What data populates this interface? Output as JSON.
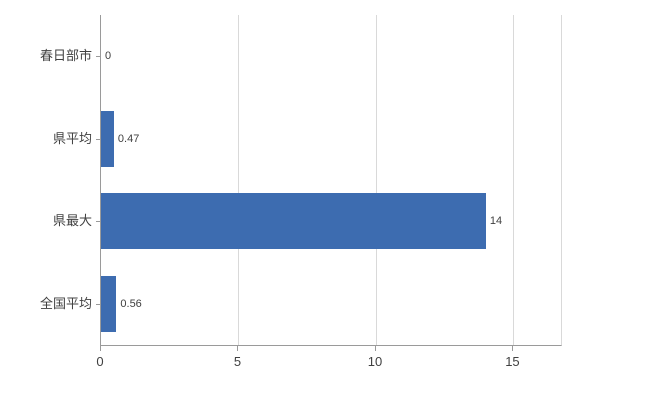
{
  "chart_data": {
    "type": "bar",
    "orientation": "horizontal",
    "title": "",
    "xlabel": "",
    "ylabel": "",
    "categories": [
      "春日部市",
      "県平均",
      "県最大",
      "全国平均"
    ],
    "values": [
      0,
      0.47,
      14,
      0.56
    ],
    "value_labels": [
      "0",
      "0.47",
      "14",
      "0.56"
    ],
    "xticks": [
      0,
      5,
      10,
      15
    ],
    "xtick_labels": [
      "0",
      "5",
      "10",
      "15"
    ],
    "xlim": [
      0,
      16.73
    ],
    "grid": "vertical",
    "legend": "none",
    "bar_color": "#3d6cb0",
    "gridline_color": "#d9d9d9",
    "axis_color": "#9a9a9a",
    "label_color": "#404040",
    "background_color": "#ffffff"
  }
}
